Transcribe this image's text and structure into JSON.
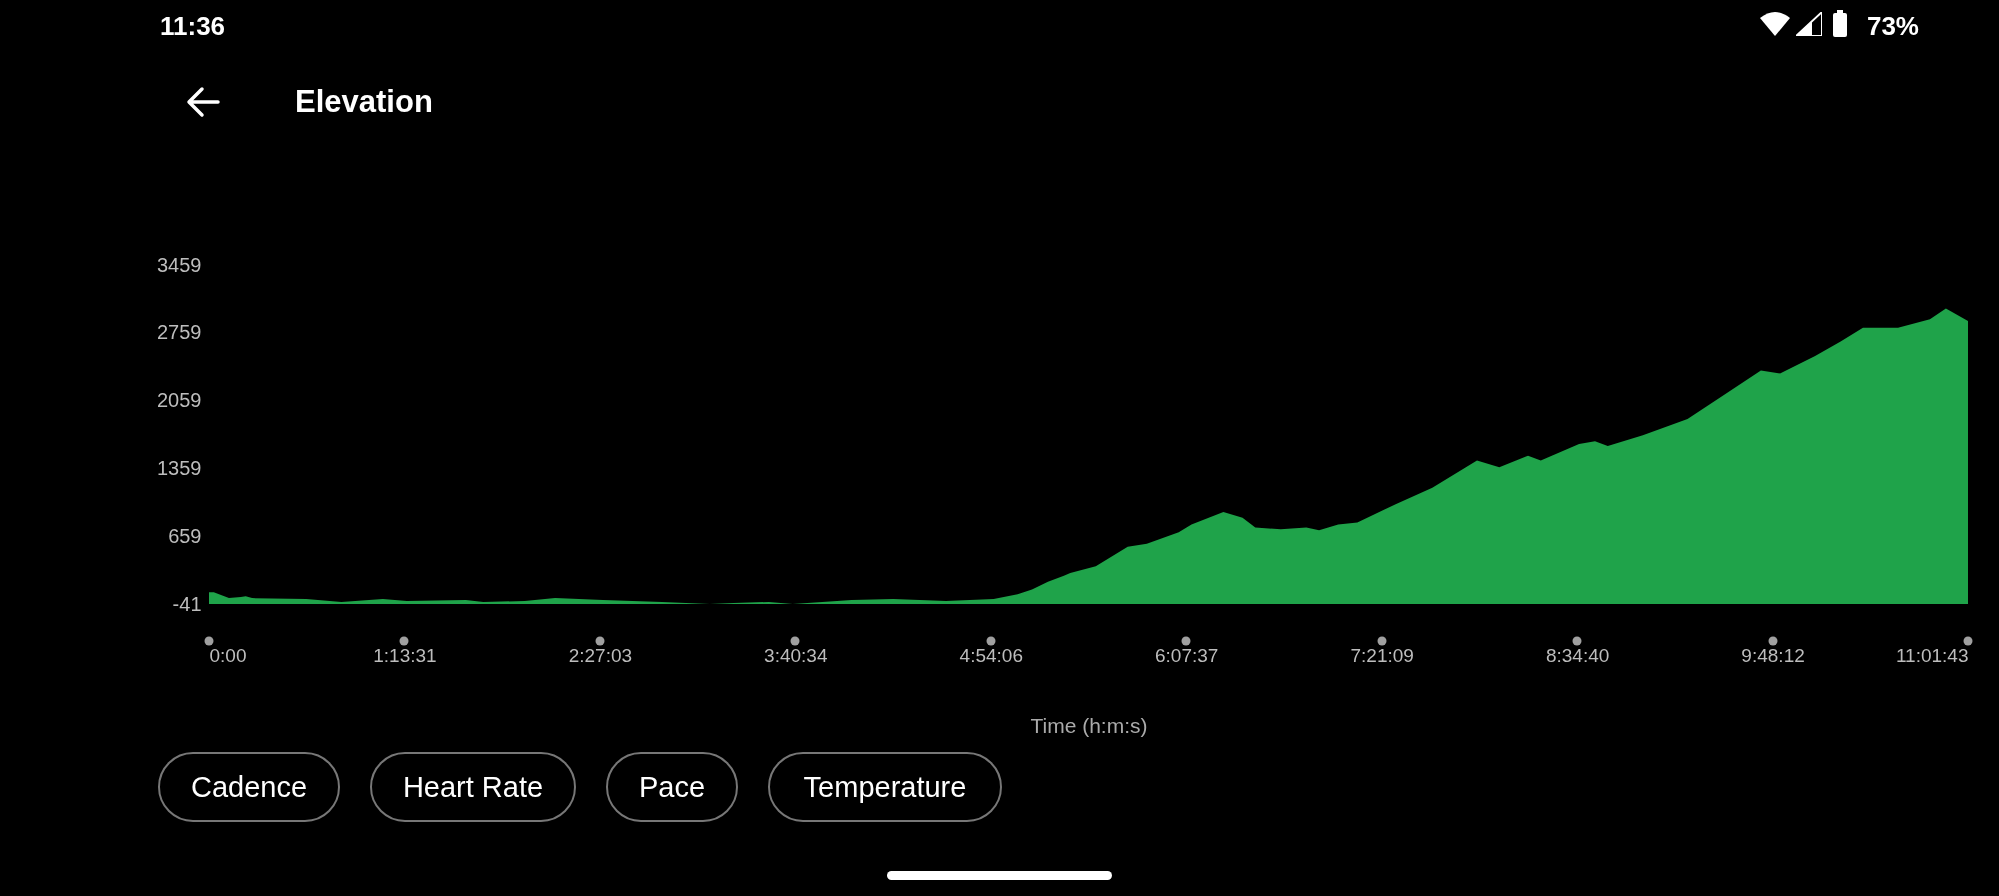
{
  "chart_data": {
    "type": "area",
    "title": "Elevation",
    "xlabel": "Time (h:m:s)",
    "annotations": [
      "11:36",
      "73%",
      "Cadence",
      "Heart Rate",
      "Pace",
      "Temperature"
    ],
    "x": [
      0,
      0.03,
      0.125,
      0.2,
      0.23,
      0.27,
      0.61,
      0.83,
      1.09,
      1.24,
      1.61,
      1.72,
      1.98,
      2.17,
      2.47,
      2.84,
      3.14,
      3.29,
      3.51,
      3.66,
      4.03,
      4.29,
      4.62,
      4.92,
      5.07,
      5.16,
      5.26,
      5.36,
      5.4,
      5.56,
      5.76,
      5.88,
      6.08,
      6.16,
      6.36,
      6.48,
      6.56,
      6.72,
      6.88,
      6.96,
      7.08,
      7.2,
      7.44,
      7.67,
      7.95,
      8.09,
      8.27,
      8.35,
      8.59,
      8.69,
      8.77,
      8.99,
      9.27,
      9.51,
      9.73,
      9.85,
      10.07,
      10.23,
      10.37,
      10.59,
      10.79,
      10.89,
      11.0286
    ],
    "series": [
      {
        "color": "#1fa34a",
        "values": [
          80,
          80,
          20,
          30,
          40,
          20,
          10,
          -20,
          10,
          -10,
          0,
          -20,
          -10,
          20,
          0,
          -20,
          -40,
          -30,
          -20,
          -40,
          0,
          10,
          -10,
          10,
          60,
          110,
          190,
          250,
          280,
          350,
          550,
          580,
          700,
          780,
          910,
          850,
          750,
          730,
          750,
          720,
          780,
          800,
          990,
          1160,
          1440,
          1370,
          1490,
          1440,
          1610,
          1640,
          1590,
          1700,
          1870,
          2130,
          2370,
          2340,
          2520,
          2670,
          2810,
          2810,
          2900,
          3010,
          2880
        ]
      }
    ],
    "ylim": [
      -41,
      3459
    ],
    "yticks": [
      -41,
      659,
      1359,
      2059,
      2759,
      3459
    ],
    "xlim": [
      0,
      11.0286
    ],
    "xticks": [
      {
        "value": 0,
        "label": "0:00"
      },
      {
        "value": 1.2253,
        "label": "1:13:31"
      },
      {
        "value": 2.4508,
        "label": "2:27:03"
      },
      {
        "value": 3.6761,
        "label": "3:40:34"
      },
      {
        "value": 4.9017,
        "label": "4:54:06"
      },
      {
        "value": 6.1269,
        "label": "6:07:37"
      },
      {
        "value": 7.3525,
        "label": "7:21:09"
      },
      {
        "value": 8.5778,
        "label": "8:34:40"
      },
      {
        "value": 9.8033,
        "label": "9:48:12"
      },
      {
        "value": 11.0286,
        "label": "11:01:43"
      }
    ]
  }
}
